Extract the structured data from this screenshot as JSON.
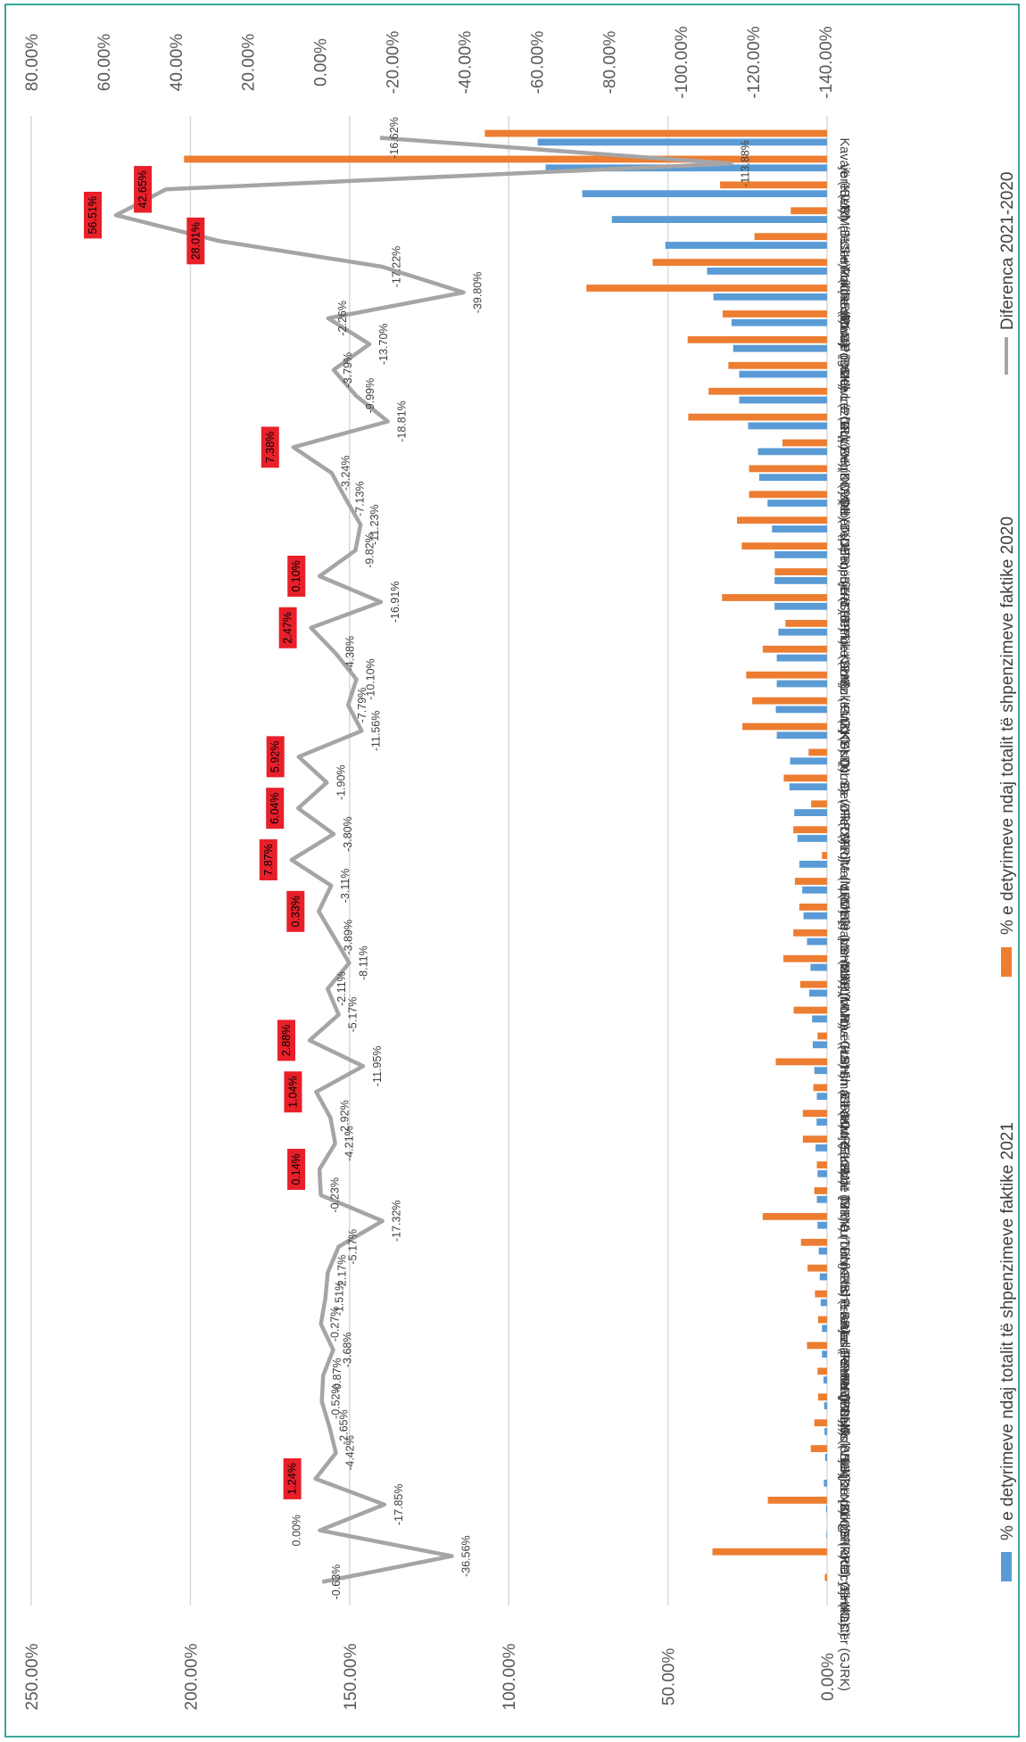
{
  "chart_data": {
    "type": "bar+line",
    "orientation": "rotated-90",
    "categories": [
      "Gjirokastër (GJRK)",
      "Këlcyrë (KLC)",
      "Shkodër (SHKD)",
      "Korçë (KRC)",
      "Dropull (DRP)",
      "Bulqizë (BLQ)",
      "Kolonjë (KLNJ)",
      "Shijak (SHJK)",
      "Vau i Dejës (VDJ)",
      "Përmet (PRM)",
      "Mallakastër (MLLK)",
      "Prrenjas (PRRNJ)",
      "Fushë-Arrëz (FSHRR)",
      "Librazhd (LBR)",
      "Kurbin (KRB)",
      "Tiranë (TRN)",
      "Mat (MT)",
      "Sarandë (SRN)",
      "Krujë (KRJ)",
      "Elbasan (ELB)",
      "Himarë (HMR)",
      "Gramsh (GRM)",
      "Has (HS)",
      "Libohovë (LBH)",
      "Vorë (VLR)",
      "Memaliaj (MML)",
      "Skrapar (SKR)",
      "Lushnjë (LSHNJ)",
      "Maliq (MLQ)",
      "Mirditë (MRD)",
      "Fier (FR)",
      "Devoll (DVLL)",
      "Durrës (DRRS)",
      "Klos (KLS)",
      "Finiq (FNQ)",
      "Kukës (KKS)",
      "Kamëz (KMZ)",
      "Pukë (PK)",
      "Selenicë (SLN)",
      "Berat (BRT)",
      "Tropojë (TRP)",
      "Tepelenë (TPL)",
      "Dibër (DBR)",
      "Divjakë (DVJ)",
      "Peqin (PQN)",
      "Kuçovë (KCV)",
      "Lezhë (LZH)",
      "Delvinë (DLV)",
      "Pogradec (PGR)",
      "Dimal (DML)",
      "Roskovec (RSK)",
      "Poliçan (PLC)",
      "Cërrik (CRRK)",
      "Malësi e Madhe (MLM)",
      "Belsh (BLSH)",
      "Vorë (VR)",
      "Kavajë (KVJ)"
    ],
    "series": [
      {
        "name": "% e detyrimeve ndaj totalit të shpenzimeve faktike 2021",
        "axis": "primary",
        "color": "#5b9bd5",
        "values": [
          0.0,
          0.0,
          0.2,
          0.3,
          1.0,
          0.6,
          0.8,
          0.9,
          1.1,
          1.6,
          1.6,
          2.0,
          2.3,
          2.6,
          3.0,
          3.2,
          3.0,
          3.6,
          3.3,
          3.2,
          4.0,
          4.5,
          4.7,
          5.6,
          5.2,
          6.3,
          7.4,
          7.8,
          8.7,
          9.3,
          10.3,
          11.8,
          11.6,
          15.8,
          16.1,
          15.8,
          15.8,
          15.3,
          16.5,
          16.5,
          16.5,
          17.3,
          18.7,
          21.3,
          21.7,
          24.8,
          27.6,
          27.6,
          29.5,
          30.0,
          35.7,
          37.7,
          50.8,
          67.6,
          76.9,
          88.4,
          90.9
        ]
      },
      {
        "name": "% e detyrimeve ndaj totalit të shpenzimeve faktike 2020",
        "axis": "primary",
        "color": "#ed7d31",
        "values": [
          0.7,
          36.0,
          0.0,
          18.6,
          0.0,
          5.1,
          4.0,
          2.8,
          3.0,
          6.3,
          2.8,
          3.8,
          6.1,
          8.2,
          20.2,
          4.0,
          3.2,
          7.6,
          7.6,
          4.3,
          16.1,
          3.0,
          10.5,
          8.4,
          13.7,
          10.6,
          8.7,
          10.1,
          1.6,
          10.6,
          5.0,
          13.6,
          5.8,
          26.6,
          23.5,
          25.4,
          20.2,
          13.1,
          33.0,
          16.4,
          26.8,
          28.3,
          24.5,
          24.5,
          14.0,
          43.6,
          37.2,
          31.0,
          43.8,
          32.8,
          75.6,
          54.8,
          22.8,
          11.4,
          33.6,
          202.0,
          107.5
        ]
      },
      {
        "name": "Diferenca 2021-2020",
        "axis": "secondary",
        "color": "#a5a5a5",
        "values": [
          -0.63,
          -36.56,
          0.0,
          -17.85,
          1.24,
          -4.42,
          -2.65,
          -0.52,
          -0.87,
          -3.68,
          -0.27,
          -1.51,
          -2.17,
          -5.17,
          -17.32,
          -0.23,
          0.14,
          -4.21,
          -2.92,
          1.04,
          -11.95,
          2.88,
          -5.17,
          -2.11,
          -8.11,
          -3.89,
          0.33,
          -3.11,
          7.87,
          -3.8,
          6.04,
          -1.9,
          5.92,
          -11.56,
          -7.79,
          -10.1,
          -4.38,
          2.47,
          -16.91,
          0.1,
          -9.82,
          -11.23,
          -7.13,
          -3.24,
          7.38,
          -18.81,
          -9.99,
          -3.79,
          -13.7,
          -2.26,
          -39.8,
          -17.22,
          28.01,
          56.51,
          42.65,
          -113.88,
          -16.62
        ]
      }
    ],
    "data_labels": [
      "-0.63%",
      "-36.56%",
      "0.00%",
      "-17.85%",
      "1.24%",
      "-4.42%",
      "-2.65%",
      "-0.52%",
      "-0.87%",
      "-3.68%",
      "-0.27%",
      "-1.51%",
      "-2.17%",
      "-5.17%",
      "-17.32%",
      "-0.23%",
      "0.14%",
      "-4.21%",
      "-2.92%",
      "1.04%",
      "-11.95%",
      "2.88%",
      "-5.17%",
      "-2.11%",
      "-8.11%",
      "-3.89%",
      "0.33%",
      "-3.11%",
      "7.87%",
      "-3.80%",
      "6.04%",
      "-1.90%",
      "5.92%",
      "-11.56%",
      "-7.79%",
      "-10.10%",
      "-4.38%",
      "2.47%",
      "-16.91%",
      "0.10%",
      "-9.82%",
      "-11.23%",
      "-7.13%",
      "-3.24%",
      "7.38%",
      "-18.81%",
      "-9.99%",
      "-3.79%",
      "-13.70%",
      "-2.26%",
      "-39.80%",
      "-17.22%",
      "28.01%",
      "56.51%",
      "42.65%",
      "-113.88%",
      "-16.62%"
    ],
    "primary_axis": {
      "min": 0,
      "max": 250,
      "step": 50,
      "tick_labels": [
        "0.00%",
        "50.00%",
        "100.00%",
        "150.00%",
        "200.00%",
        "250.00%"
      ]
    },
    "secondary_axis": {
      "min": -140,
      "max": 80,
      "step": 20,
      "tick_labels": [
        "-140.00%",
        "-120.00%",
        "-100.00%",
        "-80.00%",
        "-60.00%",
        "-40.00%",
        "-20.00%",
        "0.00%",
        "20.00%",
        "40.00%",
        "60.00%",
        "80.00%"
      ]
    },
    "grid": true,
    "legend_position": "right",
    "positive_label_highlight": "#e8202a"
  }
}
